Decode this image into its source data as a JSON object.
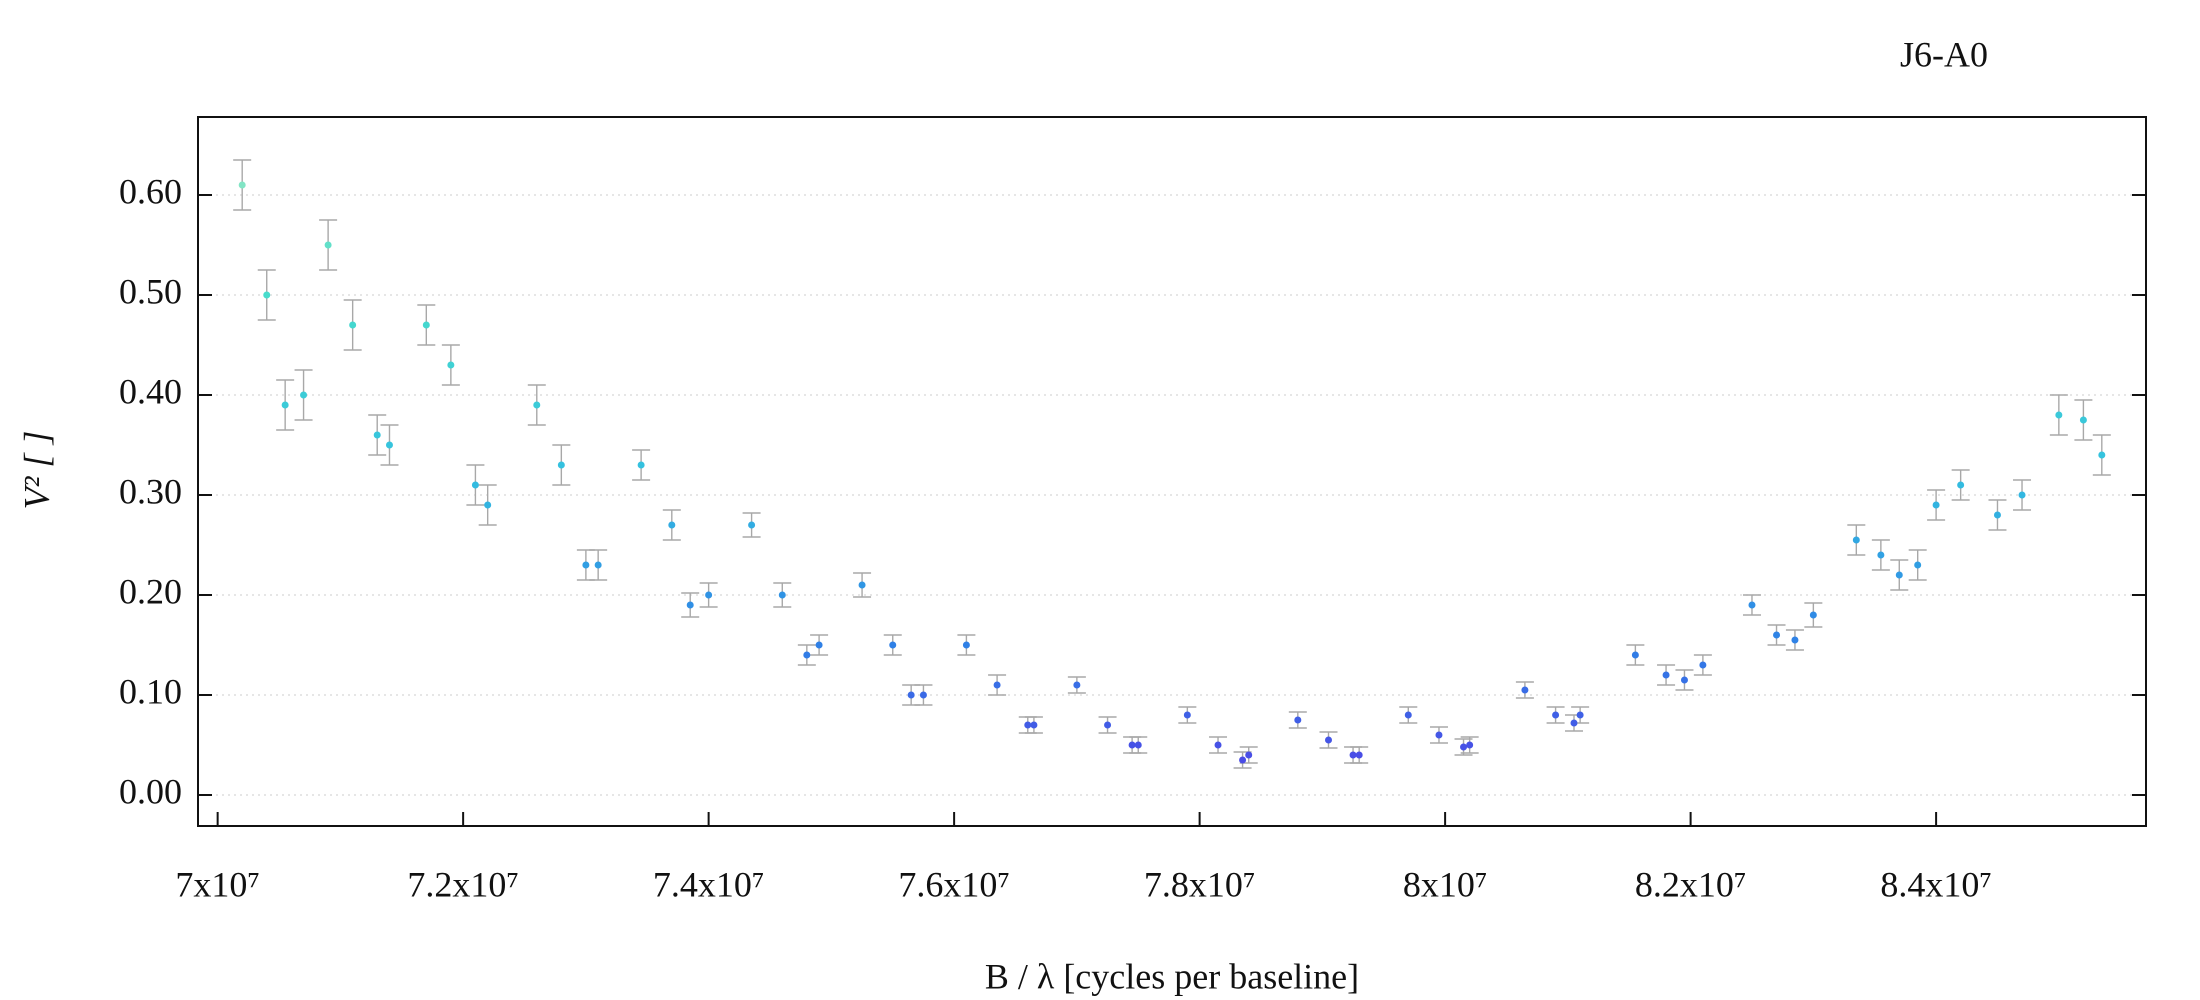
{
  "chart_data": {
    "type": "scatter",
    "title": "J6-A0",
    "x_label": "B / λ [cycles per baseline]",
    "y_label": "V² [ ]",
    "xlim": [
      69840000,
      85710000
    ],
    "ylim": [
      -0.031,
      0.678
    ],
    "xticks": [
      {
        "value": 70000000,
        "label": "7x10⁷"
      },
      {
        "value": 72000000,
        "label": "7.2x10⁷"
      },
      {
        "value": 74000000,
        "label": "7.4x10⁷"
      },
      {
        "value": 76000000,
        "label": "7.6x10⁷"
      },
      {
        "value": 78000000,
        "label": "7.8x10⁷"
      },
      {
        "value": 80000000,
        "label": "8x10⁷"
      },
      {
        "value": 82000000,
        "label": "8.2x10⁷"
      },
      {
        "value": 84000000,
        "label": "8.4x10⁷"
      }
    ],
    "yticks": [
      {
        "value": 0,
        "label": "0.00"
      },
      {
        "value": 0.1,
        "label": "0.10"
      },
      {
        "value": 0.2,
        "label": "0.20"
      },
      {
        "value": 0.3,
        "label": "0.30"
      },
      {
        "value": 0.4,
        "label": "0.40"
      },
      {
        "value": 0.5,
        "label": "0.50"
      },
      {
        "value": 0.6,
        "label": "0.60"
      }
    ],
    "grid": true,
    "error_color": "#a8a8a8",
    "colormap": [
      "#5a2de6",
      "#2f7fe6",
      "#33c0e0",
      "#48dccc",
      "#a6ebc0"
    ],
    "series": [
      {
        "x": [
          70200000,
          70400000,
          70550000,
          70700000,
          70900000,
          71100000,
          71300000,
          71400000,
          71700000,
          71900000,
          72100000,
          72200000,
          72600000,
          72800000,
          73000000,
          73100000,
          73450000,
          73700000,
          73850000,
          74000000,
          74350000,
          74600000,
          74800000,
          74900000,
          75250000,
          75500000,
          75650000,
          75750000,
          76100000,
          76350000,
          76600000,
          76650000,
          77000000,
          77250000,
          77450000,
          77500000,
          77900000,
          78150000,
          78350000,
          78400000,
          78800000,
          79050000,
          79250000,
          79300000,
          79700000,
          79950000,
          80150000,
          80200000,
          80650000,
          80900000,
          81050000,
          81100000,
          81550000,
          81800000,
          81950000,
          82100000,
          82500000,
          82700000,
          82850000,
          83000000,
          83350000,
          83550000,
          83700000,
          83850000,
          84000000,
          84200000,
          84500000,
          84700000,
          85000000,
          85200000,
          85350000
        ],
        "values": [
          0.61,
          0.5,
          0.39,
          0.4,
          0.55,
          0.47,
          0.36,
          0.35,
          0.47,
          0.43,
          0.31,
          0.29,
          0.39,
          0.33,
          0.23,
          0.23,
          0.33,
          0.27,
          0.19,
          0.2,
          0.27,
          0.2,
          0.14,
          0.15,
          0.21,
          0.15,
          0.1,
          0.1,
          0.15,
          0.11,
          0.07,
          0.07,
          0.11,
          0.07,
          0.05,
          0.05,
          0.08,
          0.05,
          0.035,
          0.04,
          0.075,
          0.055,
          0.04,
          0.04,
          0.08,
          0.06,
          0.048,
          0.05,
          0.105,
          0.08,
          0.072,
          0.08,
          0.14,
          0.12,
          0.115,
          0.13,
          0.19,
          0.16,
          0.155,
          0.18,
          0.255,
          0.24,
          0.22,
          0.23,
          0.29,
          0.31,
          0.28,
          0.3,
          0.38,
          0.375,
          0.34
        ],
        "errors": [
          0.025,
          0.025,
          0.025,
          0.025,
          0.025,
          0.025,
          0.02,
          0.02,
          0.02,
          0.02,
          0.02,
          0.02,
          0.02,
          0.02,
          0.015,
          0.015,
          0.015,
          0.015,
          0.012,
          0.012,
          0.012,
          0.012,
          0.01,
          0.01,
          0.012,
          0.01,
          0.01,
          0.01,
          0.01,
          0.01,
          0.008,
          0.008,
          0.008,
          0.008,
          0.008,
          0.008,
          0.008,
          0.008,
          0.008,
          0.008,
          0.008,
          0.008,
          0.008,
          0.008,
          0.008,
          0.008,
          0.008,
          0.008,
          0.008,
          0.008,
          0.008,
          0.008,
          0.01,
          0.01,
          0.01,
          0.01,
          0.01,
          0.01,
          0.01,
          0.012,
          0.015,
          0.015,
          0.015,
          0.015,
          0.015,
          0.015,
          0.015,
          0.015,
          0.02,
          0.02,
          0.02
        ]
      }
    ]
  }
}
